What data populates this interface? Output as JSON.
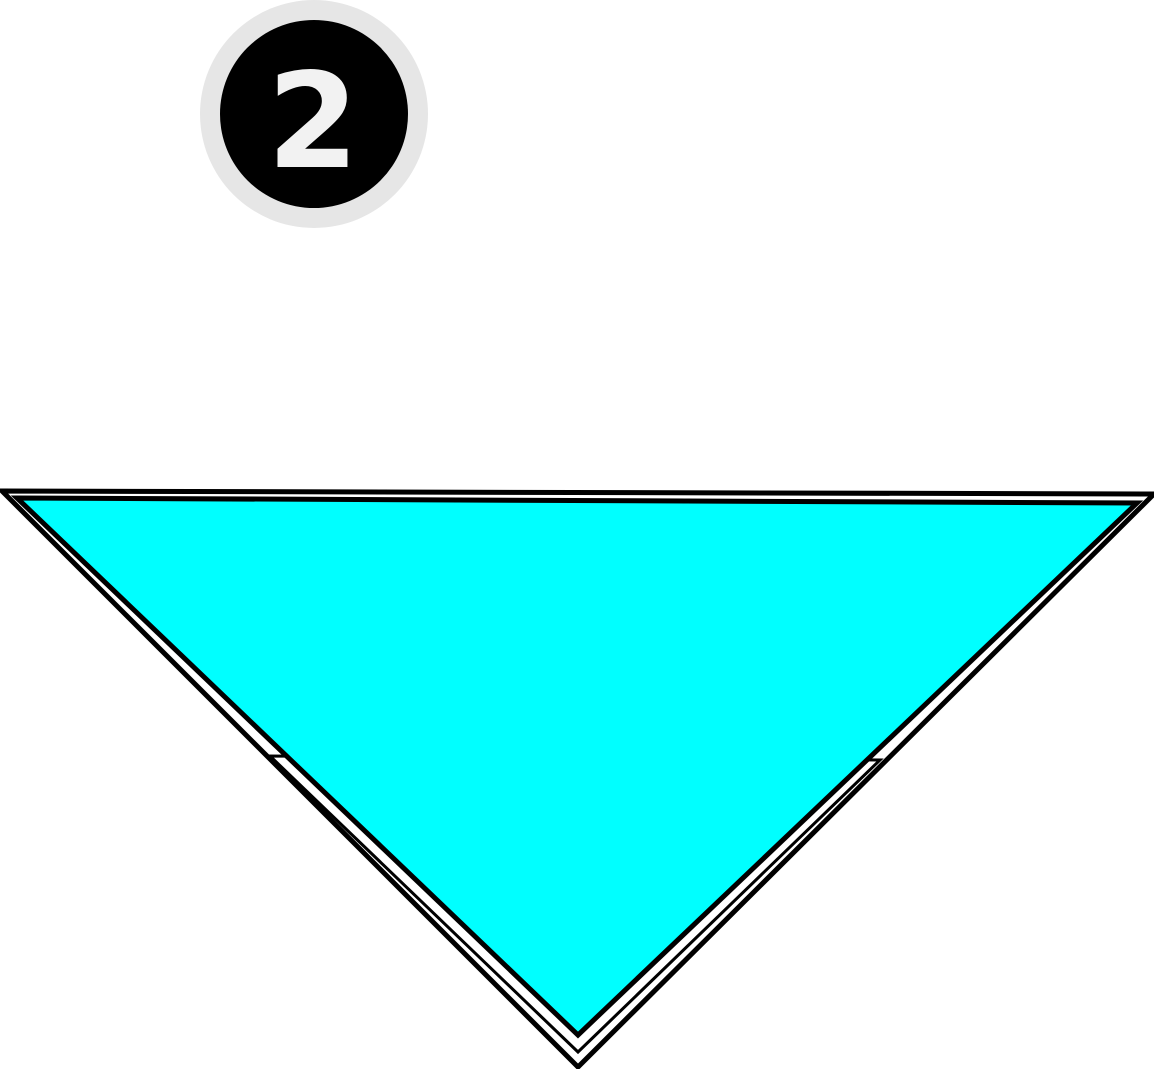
{
  "step_badge": {
    "number": "2",
    "outer_ring_color": "#e6e6e6",
    "inner_fill_color": "#000000",
    "number_color": "#f2f2f2"
  },
  "fold_triangle": {
    "shape": "down-pointing-triangle",
    "fill_color": "#00ffff",
    "outline_color": "#000000",
    "layers": 2
  }
}
